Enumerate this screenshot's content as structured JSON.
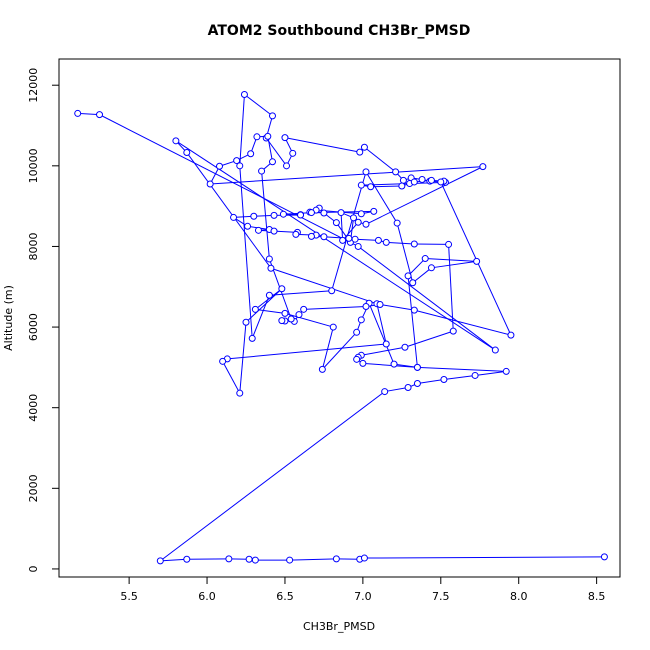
{
  "chart_data": {
    "type": "line",
    "title": "ATOM2 Southbound CH3Br_PMSD",
    "xlabel": "CH3Br_PMSD",
    "ylabel": "Altitude (m)",
    "xlim": [
      5.05,
      8.65
    ],
    "ylim": [
      -200,
      12650
    ],
    "xticks": [
      5.5,
      6.0,
      6.5,
      7.0,
      7.5,
      8.0,
      8.5
    ],
    "xtick_labels": [
      "5.5",
      "6.0",
      "6.5",
      "7.0",
      "7.5",
      "8.0",
      "8.5"
    ],
    "yticks": [
      0,
      2000,
      4000,
      6000,
      8000,
      10000,
      12000
    ],
    "ytick_labels": [
      "0",
      "2000",
      "4000",
      "6000",
      "8000",
      "10000",
      "12000"
    ],
    "grid": false,
    "marker": "open-circle",
    "color": "#0000ff",
    "x": [
      5.17,
      5.31,
      6.97,
      7.85,
      5.8,
      5.87,
      6.41,
      7.09,
      7.15,
      6.13,
      6.1,
      6.21,
      6.25,
      6.48,
      6.31,
      6.5,
      6.81,
      6.74,
      6.96,
      6.99,
      7.04,
      7.2,
      7.35,
      7.29,
      7.4,
      7.73,
      7.44,
      7.32,
      7.22,
      7.02,
      6.8,
      6.4,
      6.29,
      6.21,
      6.24,
      6.42,
      6.38,
      6.51,
      6.55,
      6.5,
      6.98,
      7.01,
      7.21,
      7.26,
      7.31,
      7.38,
      7.43,
      7.53,
      6.99,
      7.05,
      7.25,
      7.3,
      7.33,
      7.44,
      7.52,
      7.5,
      7.95,
      7.33,
      7.11,
      7.02,
      6.62,
      6.59,
      6.56,
      6.5,
      6.48,
      6.54,
      6.4,
      6.35,
      6.42,
      6.39,
      6.32,
      6.28,
      6.19,
      6.08,
      6.02,
      7.77,
      7.02,
      6.97,
      6.87,
      6.86,
      6.94,
      6.92,
      6.83,
      6.75,
      6.66,
      6.72,
      6.7,
      6.99,
      7.07,
      6.67,
      6.49,
      6.6,
      6.6,
      6.43,
      6.3,
      6.17,
      6.26,
      6.4,
      6.33,
      6.43,
      6.58,
      6.57,
      6.7,
      6.67,
      6.75,
      6.91,
      6.95,
      7.1,
      7.15,
      7.33,
      7.55,
      7.58,
      7.27,
      6.99,
      6.97,
      6.96,
      7.0,
      7.35,
      7.92,
      7.72,
      7.52,
      7.35,
      7.29,
      7.14,
      5.7,
      5.87,
      6.14,
      6.27,
      6.31,
      6.53,
      6.83,
      6.98,
      7.01,
      8.55
    ],
    "y": [
      11300,
      11270,
      8000,
      5430,
      10620,
      10330,
      7460,
      6580,
      5580,
      5210,
      5150,
      4360,
      6120,
      6950,
      6440,
      6340,
      6000,
      4950,
      5870,
      6180,
      6590,
      5080,
      5000,
      7270,
      7700,
      7630,
      7470,
      7100,
      8580,
      9850,
      6900,
      6790,
      5720,
      10000,
      11770,
      11240,
      10690,
      10000,
      10310,
      10700,
      10340,
      10460,
      9850,
      9640,
      9700,
      9660,
      9620,
      9590,
      9520,
      9480,
      9500,
      9560,
      9600,
      9640,
      9620,
      9600,
      5800,
      6420,
      6560,
      6510,
      6440,
      6310,
      6140,
      6150,
      6160,
      6200,
      7690,
      9870,
      10100,
      10730,
      10720,
      10300,
      10130,
      9990,
      9550,
      9980,
      8550,
      8600,
      8150,
      8840,
      8710,
      8100,
      8590,
      8830,
      8850,
      8950,
      8900,
      8810,
      8870,
      8840,
      8800,
      8790,
      8780,
      8770,
      8750,
      8720,
      8500,
      8420,
      8400,
      8380,
      8350,
      8300,
      8280,
      8250,
      8240,
      8200,
      8180,
      8150,
      8100,
      8060,
      8050,
      5900,
      5500,
      5300,
      5250,
      5200,
      5100,
      5000,
      4900,
      4800,
      4700,
      4600,
      4500,
      4400,
      200,
      240,
      250,
      240,
      220,
      220,
      250,
      240,
      270,
      300
    ]
  }
}
